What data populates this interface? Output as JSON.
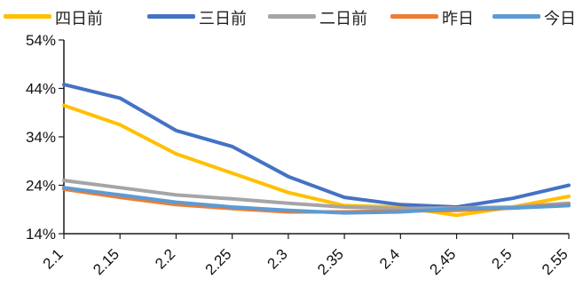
{
  "chart_data": {
    "type": "line",
    "categories": [
      "2.1",
      "2.15",
      "2.2",
      "2.25",
      "2.3",
      "2.35",
      "2.4",
      "2.45",
      "2.5",
      "2.55"
    ],
    "series": [
      {
        "name": "四日前",
        "color": "#FFC000",
        "values": [
          40.5,
          36.5,
          30.5,
          26.5,
          22.5,
          19.8,
          19.5,
          17.8,
          19.5,
          21.7
        ]
      },
      {
        "name": "三日前",
        "color": "#4472C4",
        "values": [
          44.8,
          42.0,
          35.3,
          32.0,
          25.8,
          21.5,
          20.0,
          19.5,
          21.3,
          24.0
        ]
      },
      {
        "name": "二日前",
        "color": "#A5A5A5",
        "values": [
          25.0,
          23.5,
          22.0,
          21.2,
          20.3,
          19.5,
          19.2,
          19.3,
          19.5,
          20.3
        ]
      },
      {
        "name": "昨日",
        "color": "#ED7D31",
        "values": [
          23.2,
          21.5,
          20.0,
          19.2,
          18.5,
          18.5,
          18.7,
          18.8,
          19.3,
          20.0
        ]
      },
      {
        "name": "今日",
        "color": "#5B9BD5",
        "values": [
          23.5,
          22.0,
          20.5,
          19.5,
          18.8,
          18.3,
          18.5,
          19.2,
          19.3,
          19.8
        ]
      }
    ],
    "yticks": [
      "54%",
      "44%",
      "34%",
      "24%",
      "14%"
    ],
    "ylim": [
      14,
      54
    ],
    "grid": false,
    "legend": "top",
    "title": "",
    "xlabel": "",
    "ylabel": ""
  }
}
